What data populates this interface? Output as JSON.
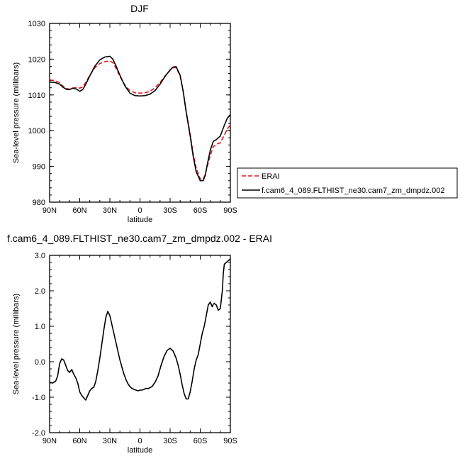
{
  "chart_data": [
    {
      "type": "line",
      "title": "DJF",
      "xlabel": "latitude",
      "ylabel": "Sea-level pressure (millibars)",
      "xlim": [
        90,
        -90
      ],
      "ylim": [
        980,
        1030
      ],
      "xticks": [
        90,
        60,
        30,
        0,
        -30,
        -60,
        -90
      ],
      "xticklabels": [
        "90N",
        "60N",
        "30N",
        "0",
        "30S",
        "60S",
        "90S"
      ],
      "yticks": [
        980,
        990,
        1000,
        1010,
        1020,
        1030
      ],
      "yticklabels": [
        "980",
        "990",
        "1000",
        "1010",
        "1020",
        "1030"
      ],
      "legend": {
        "position": "right"
      },
      "series": [
        {
          "name": "ERAI",
          "color": "#e8141b",
          "dash": "dashed",
          "x": [
            90,
            85,
            80,
            77,
            73,
            70,
            67,
            63,
            60,
            57,
            54,
            50,
            45,
            40,
            35,
            30,
            27,
            24,
            20,
            15,
            10,
            5,
            0,
            -5,
            -10,
            -15,
            -20,
            -25,
            -30,
            -33,
            -36,
            -40,
            -43,
            -46,
            -50,
            -53,
            -56,
            -60,
            -63,
            -65,
            -67,
            -70,
            -73,
            -76,
            -80,
            -84,
            -87,
            -90
          ],
          "y": [
            1014.2,
            1014.0,
            1013.4,
            1012.5,
            1011.8,
            1011.6,
            1011.9,
            1012.1,
            1011.9,
            1012.2,
            1013.5,
            1015.5,
            1017.6,
            1018.8,
            1019.3,
            1019.5,
            1019.0,
            1017.5,
            1015.2,
            1012.7,
            1011.2,
            1010.6,
            1010.5,
            1010.6,
            1011.0,
            1012.0,
            1013.5,
            1015.3,
            1016.9,
            1017.6,
            1017.6,
            1015.3,
            1011.0,
            1005.5,
            999.0,
            993.5,
            989.5,
            986.5,
            986.4,
            987.8,
            990.0,
            993.0,
            995.5,
            996.2,
            996.6,
            998.8,
            1000.5,
            1001.5
          ]
        },
        {
          "name": "f.cam6_4_089.FLTHIST_ne30.cam7_zm_dmpdz.002",
          "color": "#000000",
          "dash": "solid",
          "x": [
            90,
            85,
            80,
            77,
            73,
            70,
            67,
            63,
            60,
            57,
            54,
            50,
            45,
            40,
            35,
            30,
            27,
            24,
            20,
            15,
            10,
            5,
            0,
            -5,
            -10,
            -15,
            -20,
            -25,
            -30,
            -33,
            -36,
            -40,
            -43,
            -46,
            -50,
            -53,
            -56,
            -60,
            -63,
            -65,
            -67,
            -70,
            -73,
            -76,
            -80,
            -84,
            -87,
            -90
          ],
          "y": [
            1013.6,
            1013.5,
            1013.0,
            1012.2,
            1011.5,
            1011.5,
            1011.9,
            1011.6,
            1011.0,
            1011.5,
            1013.0,
            1015.3,
            1018.0,
            1019.8,
            1020.6,
            1020.8,
            1020.0,
            1018.2,
            1015.5,
            1012.5,
            1010.5,
            1009.8,
            1009.7,
            1009.8,
            1010.2,
            1011.2,
            1013.0,
            1015.2,
            1017.0,
            1017.8,
            1017.9,
            1015.5,
            1011.0,
            1005.2,
            998.5,
            992.8,
            988.5,
            986.0,
            986.0,
            987.5,
            990.5,
            994.5,
            997.0,
            997.5,
            998.5,
            1001.5,
            1003.5,
            1004.5
          ]
        }
      ]
    },
    {
      "type": "line",
      "title": "f.cam6_4_089.FLTHIST_ne30.cam7_zm_dmpdz.002 - ERAI",
      "xlabel": "latitude",
      "ylabel": "Sea-level pressure (millibars)",
      "xlim": [
        90,
        -90
      ],
      "ylim": [
        -2,
        3
      ],
      "xticks": [
        90,
        60,
        30,
        0,
        -30,
        -60,
        -90
      ],
      "xticklabels": [
        "90N",
        "60N",
        "30N",
        "0",
        "30S",
        "60S",
        "90S"
      ],
      "yticks": [
        -2,
        -1,
        0,
        1,
        2,
        3
      ],
      "yticklabels": [
        "-2.0",
        "-1.0",
        "0.0",
        "1.0",
        "2.0",
        "3.0"
      ],
      "series": [
        {
          "color": "#000000",
          "dash": "solid",
          "x": [
            90,
            87,
            84,
            82,
            80,
            78,
            76,
            74,
            72,
            70,
            68,
            66,
            64,
            62,
            60,
            58,
            56,
            54,
            52,
            50,
            48,
            46,
            44,
            42,
            40,
            38,
            36,
            34,
            32,
            30,
            28,
            26,
            24,
            22,
            20,
            18,
            16,
            14,
            12,
            10,
            8,
            6,
            4,
            2,
            0,
            -2,
            -4,
            -6,
            -8,
            -10,
            -12,
            -15,
            -18,
            -21,
            -24,
            -27,
            -30,
            -33,
            -36,
            -38,
            -40,
            -42,
            -44,
            -46,
            -48,
            -50,
            -52,
            -54,
            -56,
            -58,
            -60,
            -62,
            -64,
            -66,
            -68,
            -70,
            -72,
            -73,
            -74,
            -75,
            -76,
            -78,
            -80,
            -82,
            -83,
            -84,
            -86,
            -88,
            -90
          ],
          "y": [
            -0.58,
            -0.6,
            -0.55,
            -0.4,
            -0.05,
            0.08,
            0.05,
            -0.1,
            -0.25,
            -0.3,
            -0.22,
            -0.35,
            -0.45,
            -0.6,
            -0.85,
            -0.95,
            -1.02,
            -1.08,
            -0.95,
            -0.82,
            -0.75,
            -0.72,
            -0.55,
            -0.25,
            0.1,
            0.5,
            0.9,
            1.25,
            1.42,
            1.3,
            1.05,
            0.8,
            0.55,
            0.3,
            0.05,
            -0.15,
            -0.35,
            -0.5,
            -0.62,
            -0.7,
            -0.75,
            -0.78,
            -0.8,
            -0.82,
            -0.8,
            -0.8,
            -0.78,
            -0.75,
            -0.76,
            -0.73,
            -0.7,
            -0.58,
            -0.4,
            -0.1,
            0.15,
            0.32,
            0.38,
            0.3,
            0.1,
            -0.1,
            -0.35,
            -0.65,
            -0.9,
            -1.05,
            -1.05,
            -0.85,
            -0.55,
            -0.2,
            0.05,
            0.2,
            0.5,
            0.8,
            1.0,
            1.3,
            1.6,
            1.68,
            1.55,
            1.62,
            1.65,
            1.62,
            1.6,
            1.45,
            1.5,
            2.0,
            2.5,
            2.75,
            2.8,
            2.85,
            2.9
          ]
        }
      ]
    }
  ]
}
